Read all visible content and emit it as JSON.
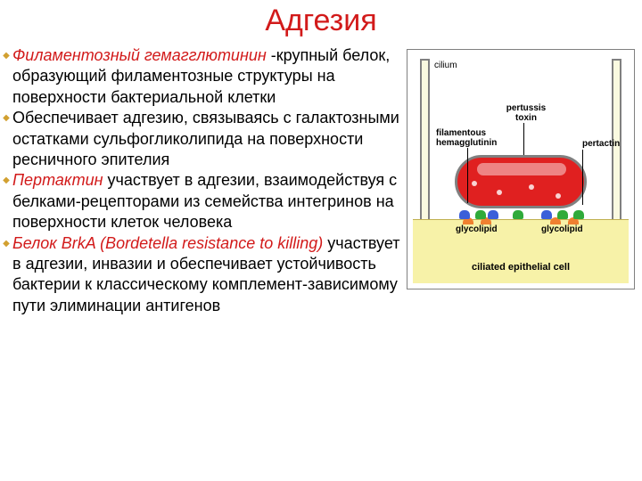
{
  "title": {
    "text": "Адгезия",
    "color": "#d21a1a"
  },
  "bullets": [
    {
      "term": "Филаментозный гемагглютинин ",
      "rest": "-крупный белок, образующий филаментозные структуры на поверхности бактериальной клетки",
      "termColor": "#d21a1a",
      "italic": true,
      "markerColor": "#d2a030"
    },
    {
      "term": "",
      "rest": "Обеспечивает адгезию, связываясь с галактозными остатками сульфогликолипида на поверхности ресничного эпителия",
      "termColor": "",
      "italic": false,
      "markerColor": "#d2a030"
    },
    {
      "term": "Пертактин ",
      "rest": "участвует в адгезии, взаимодействуя с белками-рецепторами из семейства интегринов на поверхности клеток человека",
      "termColor": "#d21a1a",
      "italic": true,
      "markerColor": "#d2a030"
    },
    {
      "term": "Белок BrkA (Bordetella resistance to killing) ",
      "rest": "участвует в адгезии, инвазии и обеспечивает устойчивость бактерии к классическому комплемент-зависимому пути элиминации антигенов",
      "termColor": "#d21a1a",
      "italic": true,
      "markerColor": "#d2a030"
    }
  ],
  "diagram": {
    "ciliumLabel": "cilium",
    "pertussisToxin": "pertussis\ntoxin",
    "fha": "filamentous\nhemagglutinin",
    "pertactin": "pertactin",
    "glycolipid": "glycolipid",
    "epithelium": "ciliated epithelial cell",
    "colors": {
      "bacterium": "#e02020",
      "bacteriumBorder": "#808080",
      "epithelium": "#f7f2a8",
      "cilium": "#fafae0",
      "fha": "#3a5fd9",
      "pertactin": "#2faa3a",
      "glycolipid": "#f08030"
    }
  }
}
